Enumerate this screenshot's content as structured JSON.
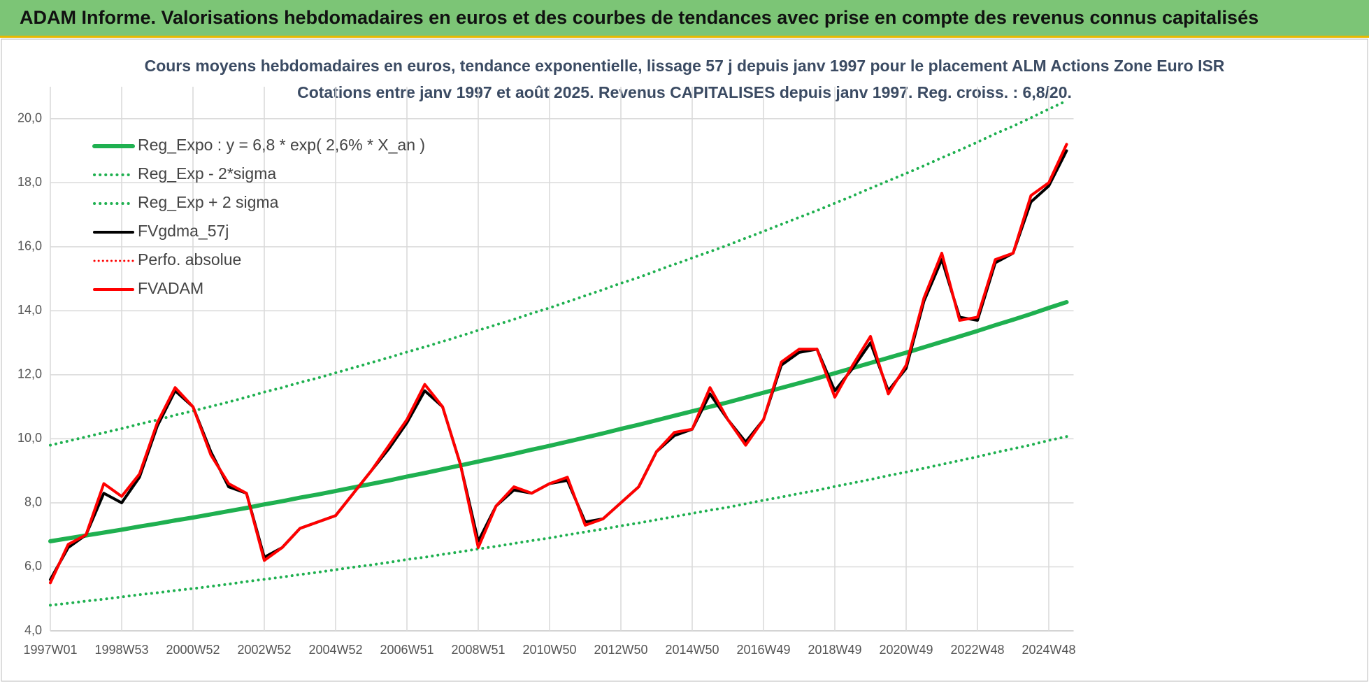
{
  "header": {
    "title": "ADAM Informe. Valorisations hebdomadaires en euros et des courbes de tendances avec prise en compte des revenus connus capitalisés"
  },
  "chart_data": {
    "type": "line",
    "title": "Cours moyens hebdomadaires en euros, tendance exponentielle, lissage 57 j depuis janv 1997 pour le placement ALM Actions Zone Euro ISR",
    "subtitle": "Cotations entre janv 1997 et août 2025. Revenus CAPITALISES depuis janv 1997. Reg. croiss. : 6,8/20.",
    "categories": [
      "1997W01",
      null,
      null,
      null,
      "1998W53",
      null,
      null,
      null,
      "2000W52",
      null,
      null,
      null,
      "2002W52",
      null,
      null,
      null,
      "2004W52",
      null,
      null,
      null,
      "2006W51",
      null,
      null,
      null,
      "2008W51",
      null,
      null,
      null,
      "2010W50",
      null,
      null,
      null,
      "2012W50",
      null,
      null,
      null,
      "2014W50",
      null,
      null,
      null,
      "2016W49",
      null,
      null,
      null,
      "2018W49",
      null,
      null,
      null,
      "2020W49",
      null,
      null,
      null,
      "2022W48",
      null,
      null,
      null,
      "2024W48",
      null
    ],
    "ylim": [
      4,
      21
    ],
    "yticks": [
      {
        "value": 4,
        "label": "4,0"
      },
      {
        "value": 6,
        "label": "6,0"
      },
      {
        "value": 8,
        "label": "8,0"
      },
      {
        "value": 10,
        "label": "10,0"
      },
      {
        "value": 12,
        "label": "12,0"
      },
      {
        "value": 14,
        "label": "14,0"
      },
      {
        "value": 16,
        "label": "16,0"
      },
      {
        "value": 18,
        "label": "18,0"
      },
      {
        "value": 20,
        "label": "20,0"
      }
    ],
    "grid": true,
    "legend": "top-left",
    "series": [
      {
        "name": "Reg_Expo : y = 6,8 * exp( 2,6% *  X_an )",
        "color": "#1fb050",
        "style": "solid",
        "width": 6,
        "values": [
          6.8,
          6.89,
          6.98,
          7.07,
          7.16,
          7.26,
          7.35,
          7.45,
          7.54,
          7.64,
          7.74,
          7.84,
          7.95,
          8.05,
          8.16,
          8.26,
          8.37,
          8.48,
          8.59,
          8.7,
          8.82,
          8.93,
          9.05,
          9.17,
          9.29,
          9.41,
          9.53,
          9.66,
          9.78,
          9.91,
          10.04,
          10.17,
          10.31,
          10.44,
          10.58,
          10.72,
          10.86,
          11.0,
          11.14,
          11.29,
          11.44,
          11.59,
          11.74,
          11.89,
          12.05,
          12.21,
          12.37,
          12.53,
          12.69,
          12.86,
          13.03,
          13.2,
          13.37,
          13.55,
          13.72,
          13.9,
          14.09,
          14.27
        ]
      },
      {
        "name": "Reg_Exp - 2*sigma",
        "color": "#1fb050",
        "style": "dotted",
        "width": 4,
        "values": [
          4.8,
          4.86,
          4.93,
          4.99,
          5.06,
          5.13,
          5.19,
          5.26,
          5.32,
          5.39,
          5.46,
          5.54,
          5.61,
          5.68,
          5.76,
          5.83,
          5.91,
          5.99,
          6.06,
          6.14,
          6.23,
          6.3,
          6.39,
          6.47,
          6.56,
          6.64,
          6.73,
          6.82,
          6.9,
          7.0,
          7.09,
          7.18,
          7.28,
          7.37,
          7.47,
          7.57,
          7.67,
          7.77,
          7.86,
          7.97,
          8.08,
          8.18,
          8.29,
          8.39,
          8.51,
          8.62,
          8.73,
          8.85,
          8.96,
          9.08,
          9.2,
          9.32,
          9.44,
          9.57,
          9.69,
          9.81,
          9.95,
          10.07
        ]
      },
      {
        "name": "Reg_Exp + 2 sigma",
        "color": "#1fb050",
        "style": "dotted",
        "width": 4,
        "values": [
          9.8,
          9.93,
          10.06,
          10.19,
          10.32,
          10.46,
          10.59,
          10.74,
          10.87,
          11.01,
          11.15,
          11.3,
          11.46,
          11.6,
          11.76,
          11.9,
          12.06,
          12.22,
          12.38,
          12.54,
          12.71,
          12.87,
          13.04,
          13.21,
          13.39,
          13.56,
          13.73,
          13.92,
          14.09,
          14.28,
          14.47,
          14.66,
          14.86,
          15.04,
          15.25,
          15.45,
          15.65,
          15.85,
          16.05,
          16.27,
          16.48,
          16.7,
          16.92,
          17.13,
          17.36,
          17.59,
          17.83,
          18.06,
          18.29,
          18.53,
          18.78,
          19.02,
          19.27,
          19.53,
          19.77,
          20.03,
          20.3,
          20.56
        ]
      },
      {
        "name": "FVgdma_57j",
        "color": "#000000",
        "style": "solid",
        "width": 4,
        "values": [
          5.6,
          6.6,
          7.0,
          8.3,
          8.0,
          8.8,
          10.4,
          11.5,
          11.0,
          9.6,
          8.5,
          8.3,
          6.3,
          6.6,
          7.2,
          7.4,
          7.6,
          8.3,
          9.0,
          9.7,
          10.5,
          11.5,
          11.0,
          9.2,
          6.8,
          7.9,
          8.4,
          8.3,
          8.6,
          8.7,
          7.4,
          7.5,
          8.0,
          8.5,
          9.6,
          10.1,
          10.3,
          11.4,
          10.6,
          9.9,
          10.6,
          12.3,
          12.7,
          12.8,
          11.5,
          12.2,
          13.0,
          11.5,
          12.2,
          14.3,
          15.6,
          13.8,
          13.7,
          15.5,
          15.8,
          17.4,
          17.9,
          19.0
        ]
      },
      {
        "name": "Perfo. absolue",
        "color": "#ff0000",
        "style": "dotted",
        "width": 3,
        "values": [
          5.5,
          6.7,
          7.0,
          8.6,
          8.2,
          8.9,
          10.5,
          11.6,
          11.0,
          9.5,
          8.6,
          8.3,
          6.2,
          6.6,
          7.2,
          7.4,
          7.6,
          8.3,
          9.0,
          9.8,
          10.6,
          11.7,
          11.0,
          9.2,
          6.6,
          7.9,
          8.5,
          8.3,
          8.6,
          8.8,
          7.3,
          7.5,
          8.0,
          8.5,
          9.6,
          10.2,
          10.3,
          11.6,
          10.6,
          9.8,
          10.6,
          12.4,
          12.8,
          12.8,
          11.3,
          12.3,
          13.2,
          11.4,
          12.3,
          14.4,
          15.8,
          13.7,
          13.8,
          15.6,
          15.8,
          17.6,
          18.0,
          19.2
        ]
      },
      {
        "name": "FVADAM",
        "color": "#ff0000",
        "style": "solid",
        "width": 4,
        "values": [
          5.5,
          6.7,
          7.0,
          8.6,
          8.2,
          8.9,
          10.5,
          11.6,
          11.0,
          9.5,
          8.6,
          8.3,
          6.2,
          6.6,
          7.2,
          7.4,
          7.6,
          8.3,
          9.0,
          9.8,
          10.6,
          11.7,
          11.0,
          9.2,
          6.6,
          7.9,
          8.5,
          8.3,
          8.6,
          8.8,
          7.3,
          7.5,
          8.0,
          8.5,
          9.6,
          10.2,
          10.3,
          11.6,
          10.6,
          9.8,
          10.6,
          12.4,
          12.8,
          12.8,
          11.3,
          12.3,
          13.2,
          11.4,
          12.3,
          14.4,
          15.8,
          13.7,
          13.8,
          15.6,
          15.8,
          17.6,
          18.0,
          19.2
        ]
      }
    ]
  }
}
